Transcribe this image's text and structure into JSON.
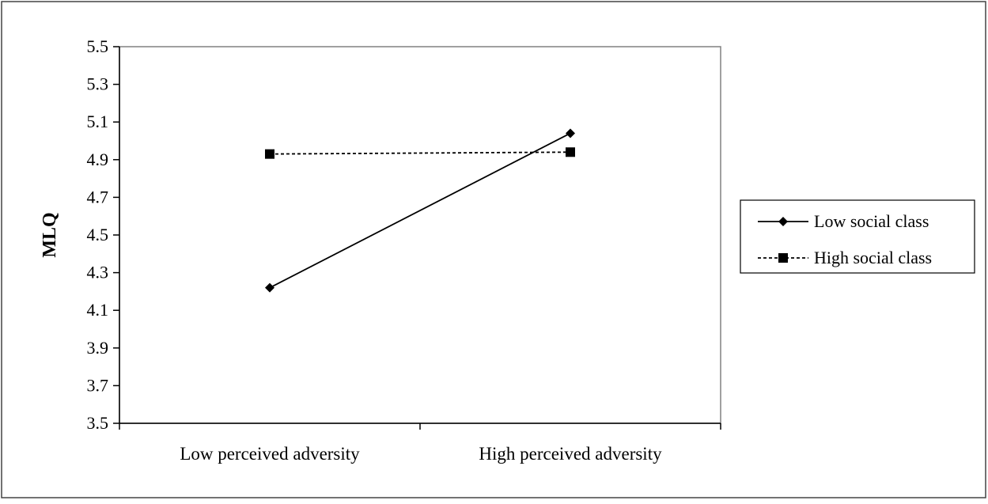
{
  "chart_data": {
    "type": "line",
    "title": "",
    "xlabel": "",
    "ylabel": "MLQ",
    "categories": [
      "Low perceived adversity",
      "High perceived adversity"
    ],
    "ylim": [
      3.5,
      5.5
    ],
    "yticks": [
      "3.5",
      "3.7",
      "3.9",
      "4.1",
      "4.3",
      "4.5",
      "4.7",
      "4.9",
      "5.1",
      "5.3",
      "5.5"
    ],
    "grid": false,
    "legend_position": "right",
    "series": [
      {
        "name": "Low social class",
        "values": [
          4.22,
          5.04
        ],
        "line_style": "solid",
        "marker": "diamond",
        "color": "#000000"
      },
      {
        "name": "High social class",
        "values": [
          4.93,
          4.94
        ],
        "line_style": "dashed",
        "marker": "square",
        "color": "#000000"
      }
    ]
  }
}
